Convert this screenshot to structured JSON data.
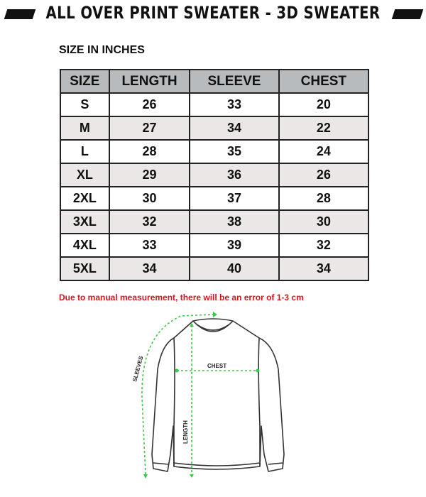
{
  "header": {
    "title": "ALL OVER PRINT SWEATER - 3D SWEATER"
  },
  "subtitle": "SIZE IN INCHES",
  "table": {
    "columns": [
      "SIZE",
      "LENGTH",
      "SLEEVE",
      "CHEST"
    ],
    "rows": [
      [
        "S",
        "26",
        "33",
        "20"
      ],
      [
        "M",
        "27",
        "34",
        "22"
      ],
      [
        "L",
        "28",
        "35",
        "24"
      ],
      [
        "XL",
        "29",
        "36",
        "26"
      ],
      [
        "2XL",
        "30",
        "37",
        "28"
      ],
      [
        "3XL",
        "32",
        "38",
        "30"
      ],
      [
        "4XL",
        "33",
        "39",
        "32"
      ],
      [
        "5XL",
        "34",
        "40",
        "34"
      ]
    ]
  },
  "note": "Due to manual measurement, there will be an error of 1-3 cm",
  "diagram": {
    "chest_label": "CHEST",
    "length_label": "LENGTH",
    "sleeves_label": "SLEEVES",
    "measure_color": "#3cc84a"
  }
}
